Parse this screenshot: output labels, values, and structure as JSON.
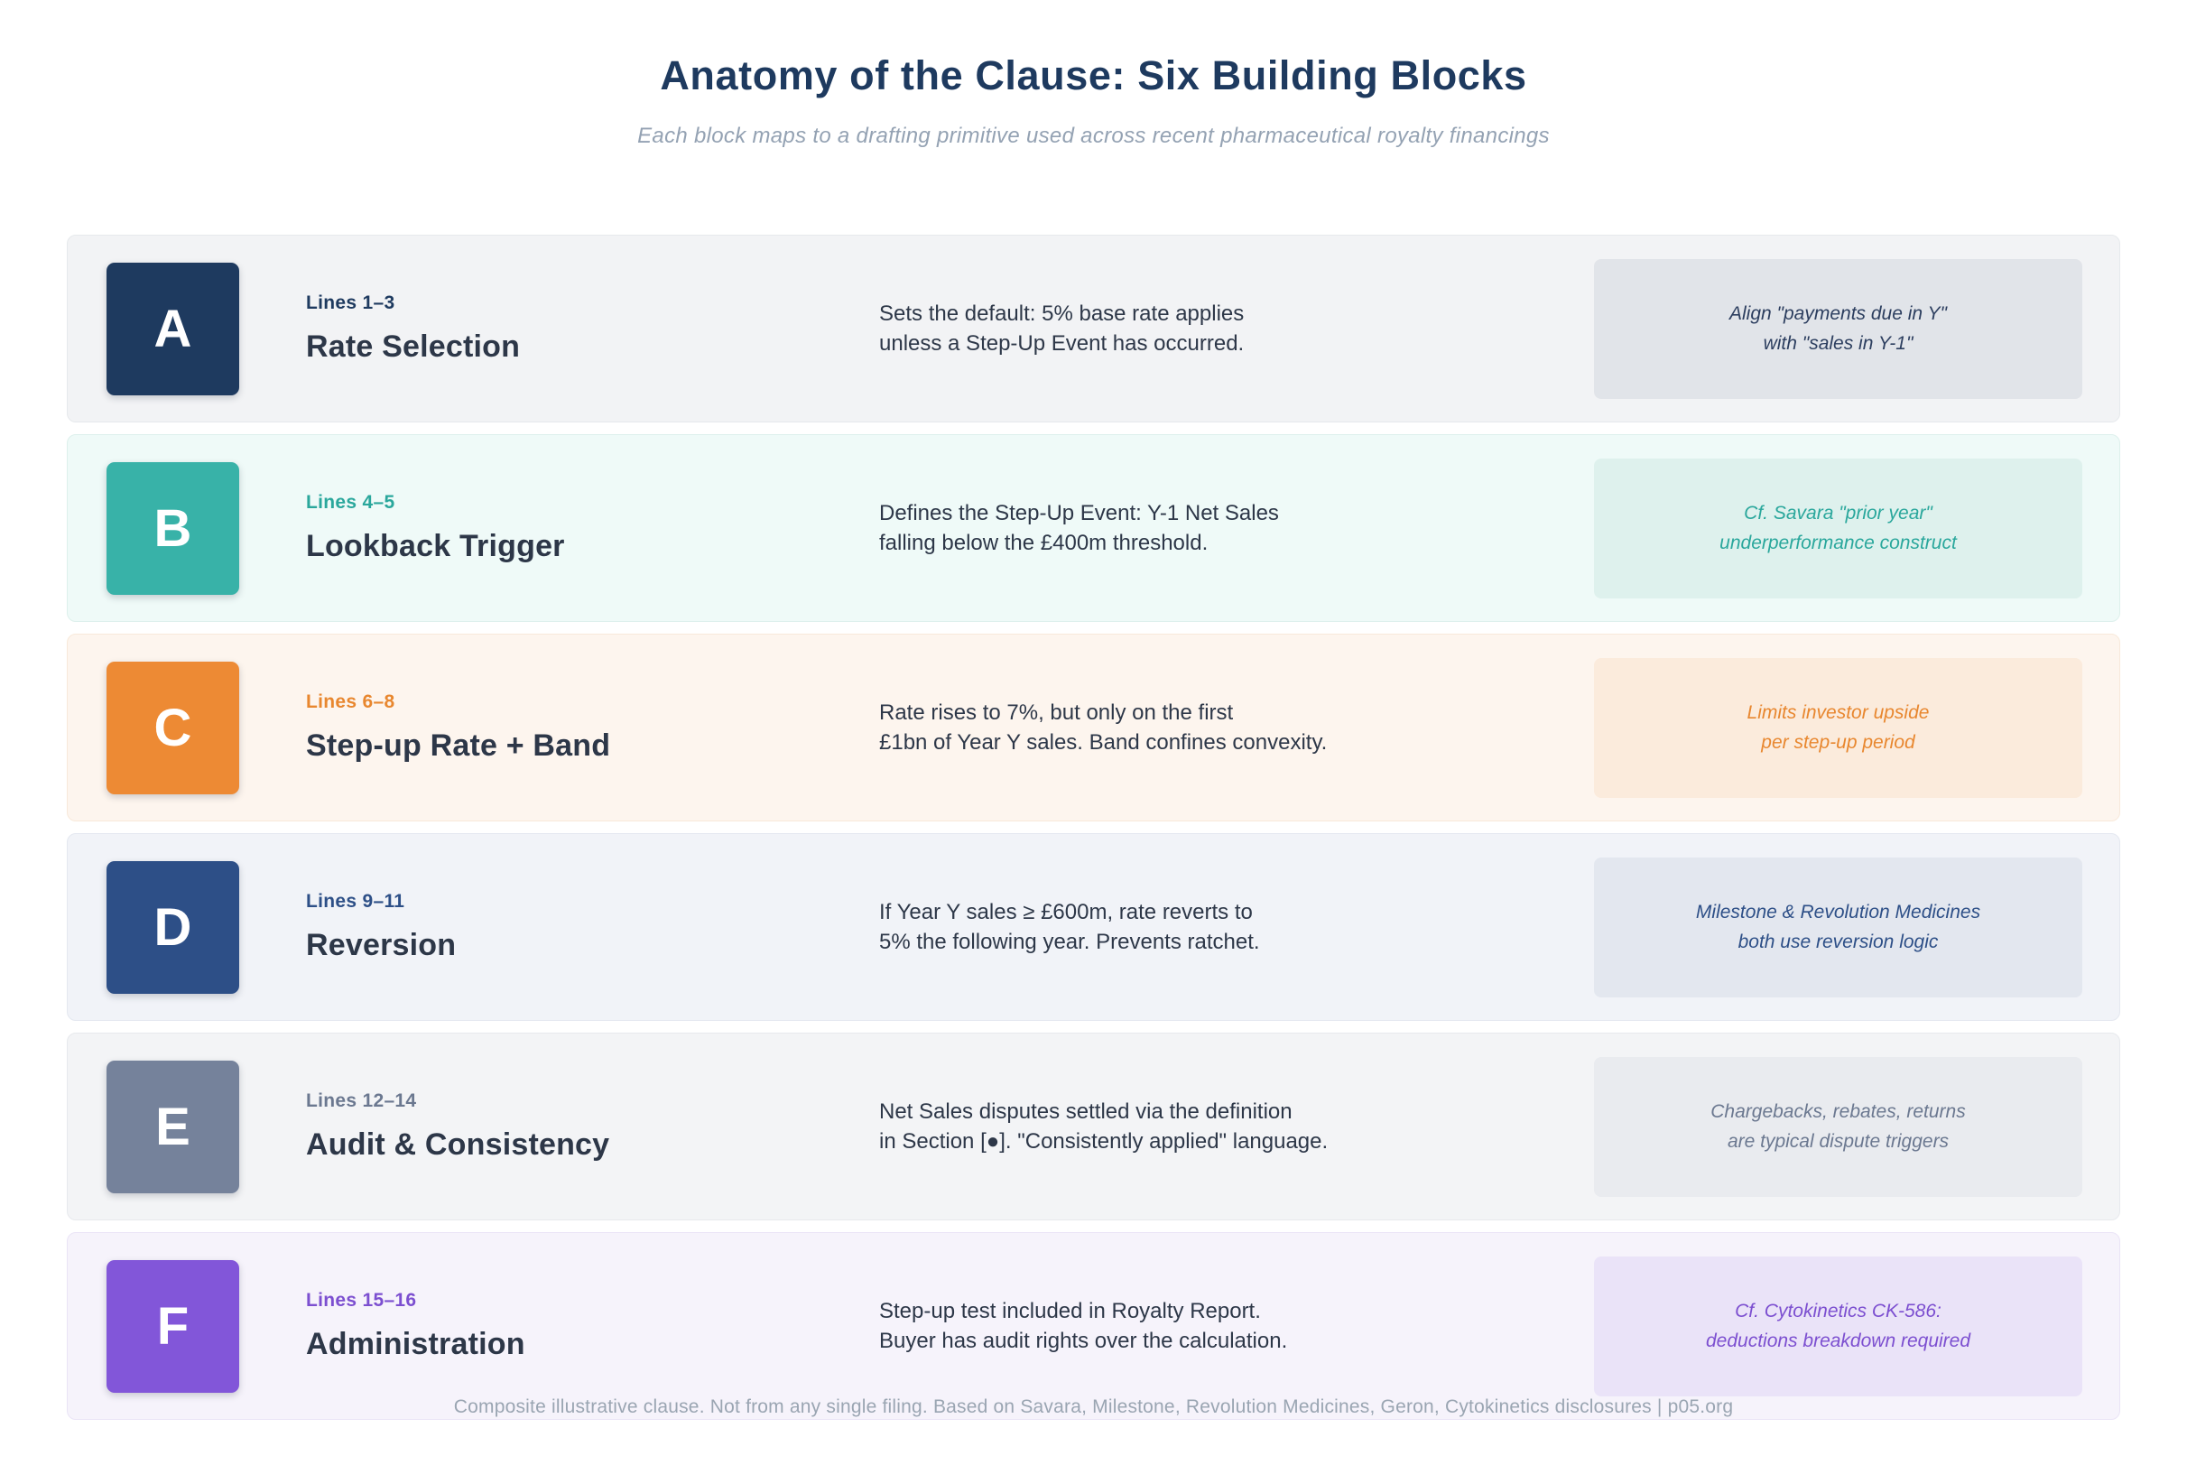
{
  "header": {
    "title": "Anatomy of the Clause: Six Building Blocks",
    "subtitle": "Each block maps to a drafting primitive used across recent pharmaceutical royalty financings"
  },
  "rows": [
    {
      "letter": "A",
      "lines_label": "Lines 1–3",
      "title": "Rate Selection",
      "description": [
        "Sets the default: 5% base rate applies",
        "unless a Step-Up Event has occurred."
      ],
      "note": [
        "Align \"payments due in Y\"",
        "with \"sales in Y-1\""
      ],
      "colors": {
        "block_bg": "#1e3a5f",
        "card_bg": "#f2f3f5",
        "card_border": "#e6e9ec",
        "lines_text": "#1e3a5f",
        "note_bg": "#e1e4e9",
        "note_text": "#2c3e5f"
      }
    },
    {
      "letter": "B",
      "lines_label": "Lines 4–5",
      "title": "Lookback Trigger",
      "description": [
        "Defines the Step-Up Event: Y-1 Net Sales",
        "falling below the £400m threshold."
      ],
      "note": [
        "Cf. Savara \"prior year\"",
        "underperformance construct"
      ],
      "colors": {
        "block_bg": "#38b2a8",
        "card_bg": "#effaf8",
        "card_border": "#ddf0ec",
        "lines_text": "#2aa79c",
        "note_bg": "#def1ed",
        "note_text": "#2aa79c"
      }
    },
    {
      "letter": "C",
      "lines_label": "Lines 6–8",
      "title": "Step-up Rate + Band",
      "description": [
        "Rate rises to 7%, but only on the first",
        "£1bn of Year Y sales. Band confines convexity."
      ],
      "note": [
        "Limits investor upside",
        "per step-up period"
      ],
      "colors": {
        "block_bg": "#ed8a34",
        "card_bg": "#fdf5ee",
        "card_border": "#f8e9da",
        "lines_text": "#e8872f",
        "note_bg": "#fbebdc",
        "note_text": "#e8872f"
      }
    },
    {
      "letter": "D",
      "lines_label": "Lines 9–11",
      "title": "Reversion",
      "description": [
        "If Year Y sales ≥ £600m, rate reverts to",
        "5% the following year. Prevents ratchet."
      ],
      "note": [
        "Milestone & Revolution Medicines",
        "both use reversion logic"
      ],
      "colors": {
        "block_bg": "#2d4f87",
        "card_bg": "#f1f3f8",
        "card_border": "#e4e8f0",
        "lines_text": "#2d4f87",
        "note_bg": "#e3e7ef",
        "note_text": "#2d4f87"
      }
    },
    {
      "letter": "E",
      "lines_label": "Lines 12–14",
      "title": "Audit & Consistency",
      "description": [
        "Net Sales disputes settled via the definition",
        "in Section [●]. \"Consistently applied\" language."
      ],
      "note": [
        "Chargebacks, rebates, returns",
        "are typical dispute triggers"
      ],
      "colors": {
        "block_bg": "#75829b",
        "card_bg": "#f3f4f6",
        "card_border": "#e7e9ed",
        "lines_text": "#6b7890",
        "note_bg": "#e9ebef",
        "note_text": "#6b7890"
      }
    },
    {
      "letter": "F",
      "lines_label": "Lines 15–16",
      "title": "Administration",
      "description": [
        "Step-up test included in Royalty Report.",
        "Buyer has audit rights over the calculation."
      ],
      "note": [
        "Cf. Cytokinetics CK-586:",
        "deductions breakdown required"
      ],
      "colors": {
        "block_bg": "#8256d9",
        "card_bg": "#f6f3fb",
        "card_border": "#eae4f6",
        "lines_text": "#7c4fd0",
        "note_bg": "#eae3f8",
        "note_text": "#7c4fd0"
      }
    }
  ],
  "footer": {
    "text": "Composite illustrative clause. Not from any single filing. Based on Savara, Milestone, Revolution Medicines, Geron, Cytokinetics disclosures | p05.org"
  },
  "colors": {
    "page_bg": "#ffffff",
    "title_text": "#1e3a5f",
    "subtitle_text": "#94a2b3",
    "body_text": "#2d3748",
    "footer_text": "#9aa5b2"
  }
}
